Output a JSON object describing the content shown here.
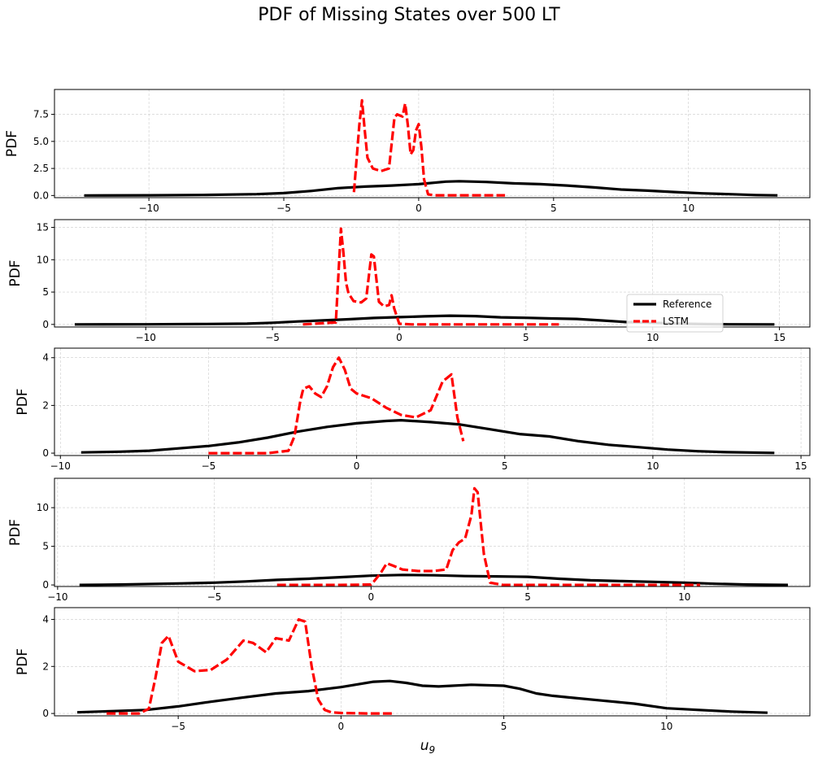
{
  "title": "PDF of Missing States over 500 LT",
  "colors": {
    "reference": "#000000",
    "lstm": "#ff0000",
    "grid": "#cccccc"
  },
  "chart_data": [
    {
      "type": "line",
      "ylabel": "PDF",
      "xlabel": "",
      "xlim": [
        -13.5,
        14.5
      ],
      "ylim": [
        -0.2,
        9.8
      ],
      "xticks": [
        -10,
        -5,
        0,
        5,
        10
      ],
      "xtick_labels": [
        "−10",
        "−5",
        "0",
        "5",
        "10"
      ],
      "yticks": [
        0,
        2.5,
        5,
        7.5
      ],
      "ytick_labels": [
        "0.0",
        "2.5",
        "5.0",
        "7.5"
      ],
      "grid": true,
      "series": [
        {
          "name": "Reference",
          "style": "solid",
          "x": [
            -12.4,
            -10,
            -8,
            -6,
            -5,
            -4,
            -3,
            -2,
            -1,
            0,
            1,
            1.5,
            2.5,
            3.5,
            4.5,
            5.5,
            6.5,
            7.5,
            8.5,
            9.5,
            10.5,
            11.5,
            12.5,
            13.3
          ],
          "y": [
            0.0,
            0.02,
            0.05,
            0.12,
            0.22,
            0.42,
            0.68,
            0.82,
            0.92,
            1.05,
            1.28,
            1.32,
            1.25,
            1.12,
            1.05,
            0.92,
            0.75,
            0.55,
            0.45,
            0.32,
            0.2,
            0.12,
            0.04,
            0.01
          ]
        },
        {
          "name": "LSTM",
          "style": "dashed",
          "x": [
            -2.4,
            -2.2,
            -2.1,
            -2.0,
            -1.9,
            -1.7,
            -1.4,
            -1.1,
            -0.9,
            -0.8,
            -0.6,
            -0.5,
            -0.4,
            -0.3,
            -0.2,
            -0.1,
            0.0,
            0.1,
            0.2,
            0.35,
            0.6,
            1.0,
            2.0,
            3.2
          ],
          "y": [
            0.3,
            6.5,
            8.8,
            6.0,
            3.5,
            2.5,
            2.25,
            2.5,
            7.2,
            7.5,
            7.3,
            8.5,
            6.5,
            3.8,
            4.2,
            6.0,
            6.6,
            4.5,
            1.5,
            0.1,
            0.02,
            0.02,
            0.02,
            0.02
          ]
        }
      ]
    },
    {
      "type": "line",
      "ylabel": "PDF",
      "xlabel": "",
      "xlim": [
        -13.6,
        16.2
      ],
      "ylim": [
        -0.4,
        16.2
      ],
      "xticks": [
        -10,
        -5,
        0,
        5,
        10,
        15
      ],
      "xtick_labels": [
        "−10",
        "−5",
        "0",
        "5",
        "10",
        "15"
      ],
      "yticks": [
        0,
        5,
        10,
        15
      ],
      "ytick_labels": [
        "0",
        "5",
        "10",
        "15"
      ],
      "grid": true,
      "legend": {
        "position": "lower-right",
        "entries": [
          "Reference",
          "LSTM"
        ]
      },
      "series": [
        {
          "name": "Reference",
          "style": "solid",
          "x": [
            -12.8,
            -10,
            -8,
            -6,
            -5,
            -4,
            -3,
            -2,
            -1,
            0,
            1,
            2,
            3,
            4,
            5,
            6,
            7,
            8,
            9,
            10,
            11,
            12,
            13,
            14.8
          ],
          "y": [
            0.0,
            0.02,
            0.05,
            0.12,
            0.25,
            0.45,
            0.62,
            0.8,
            1.0,
            1.12,
            1.25,
            1.35,
            1.28,
            1.1,
            1.02,
            0.92,
            0.85,
            0.6,
            0.35,
            0.25,
            0.12,
            0.05,
            0.02,
            0.0
          ]
        },
        {
          "name": "LSTM",
          "style": "dashed",
          "x": [
            -3.8,
            -2.5,
            -2.3,
            -2.2,
            -2.1,
            -2.0,
            -1.8,
            -1.5,
            -1.3,
            -1.1,
            -1.0,
            -0.9,
            -0.8,
            -0.6,
            -0.4,
            -0.3,
            -0.2,
            0.0,
            0.5,
            2.0,
            4.0,
            6.3
          ],
          "y": [
            0.0,
            0.3,
            14.8,
            11.0,
            6.5,
            4.8,
            3.6,
            3.4,
            4.0,
            10.8,
            10.5,
            7.0,
            3.5,
            2.8,
            3.0,
            4.5,
            2.5,
            0.1,
            0.0,
            0.0,
            0.0,
            0.0
          ]
        }
      ]
    },
    {
      "type": "line",
      "ylabel": "PDF",
      "xlabel": "",
      "xlim": [
        -10.2,
        15.3
      ],
      "ylim": [
        -0.1,
        4.4
      ],
      "xticks": [
        -10,
        -5,
        0,
        5,
        10,
        15
      ],
      "xtick_labels": [
        "−10",
        "−5",
        "0",
        "5",
        "10",
        "15"
      ],
      "yticks": [
        0,
        2,
        4
      ],
      "ytick_labels": [
        "0",
        "2",
        "4"
      ],
      "grid": true,
      "series": [
        {
          "name": "Reference",
          "style": "solid",
          "x": [
            -9.3,
            -8,
            -7,
            -6,
            -5,
            -4,
            -3,
            -2,
            -1,
            0,
            1,
            1.5,
            2.5,
            3.5,
            4.5,
            5.5,
            6.5,
            7.5,
            8.5,
            9.5,
            10.5,
            11.5,
            12.5,
            14.1
          ],
          "y": [
            0.03,
            0.06,
            0.1,
            0.2,
            0.3,
            0.45,
            0.65,
            0.9,
            1.1,
            1.25,
            1.35,
            1.38,
            1.3,
            1.2,
            1.0,
            0.8,
            0.7,
            0.5,
            0.35,
            0.25,
            0.15,
            0.08,
            0.04,
            0.01
          ]
        },
        {
          "name": "LSTM",
          "style": "dashed",
          "x": [
            -5.0,
            -3.0,
            -2.3,
            -2.1,
            -1.9,
            -1.8,
            -1.6,
            -1.4,
            -1.2,
            -1.0,
            -0.8,
            -0.6,
            -0.4,
            -0.2,
            0.0,
            0.5,
            1.0,
            1.5,
            2.0,
            2.5,
            2.9,
            3.2,
            3.4,
            3.6
          ],
          "y": [
            0.0,
            0.0,
            0.1,
            0.7,
            2.2,
            2.7,
            2.8,
            2.5,
            2.35,
            2.8,
            3.6,
            4.0,
            3.5,
            2.7,
            2.5,
            2.3,
            1.9,
            1.6,
            1.5,
            1.8,
            3.0,
            3.3,
            1.5,
            0.5
          ]
        }
      ]
    },
    {
      "type": "line",
      "ylabel": "PDF",
      "xlabel": "",
      "xlim": [
        -10.1,
        14.0
      ],
      "ylim": [
        -0.2,
        13.8
      ],
      "xticks": [
        -10,
        -5,
        0,
        5,
        10
      ],
      "xtick_labels": [
        "−10",
        "−5",
        "0",
        "5",
        "10"
      ],
      "yticks": [
        0,
        5,
        10
      ],
      "ytick_labels": [
        "0",
        "5",
        "10"
      ],
      "grid": true,
      "series": [
        {
          "name": "Reference",
          "style": "solid",
          "x": [
            -9.3,
            -8,
            -6,
            -5,
            -4,
            -3,
            -2,
            -1,
            0,
            1,
            2,
            3,
            4,
            5,
            6,
            7,
            8,
            9,
            10,
            11,
            12,
            13.3
          ],
          "y": [
            0.0,
            0.05,
            0.2,
            0.3,
            0.45,
            0.65,
            0.8,
            1.0,
            1.2,
            1.3,
            1.25,
            1.15,
            1.1,
            1.05,
            0.8,
            0.6,
            0.5,
            0.4,
            0.3,
            0.15,
            0.05,
            0.0
          ]
        },
        {
          "name": "LSTM",
          "style": "dashed",
          "x": [
            -3.0,
            -1.0,
            0.0,
            0.1,
            0.3,
            0.5,
            0.7,
            1.0,
            1.5,
            2.0,
            2.4,
            2.6,
            2.8,
            3.0,
            3.2,
            3.3,
            3.4,
            3.6,
            3.8,
            4.2,
            6.0,
            8.0,
            10.5
          ],
          "y": [
            0.0,
            0.0,
            0.05,
            0.5,
            1.5,
            2.8,
            2.5,
            2.0,
            1.8,
            1.8,
            2.0,
            4.5,
            5.5,
            6.0,
            9.0,
            12.5,
            12.0,
            4.0,
            0.3,
            0.0,
            0.0,
            0.0,
            0.0
          ]
        }
      ]
    },
    {
      "type": "line",
      "ylabel": "PDF",
      "xlabel": "u9",
      "xlabel_base": "u",
      "xlabel_sub": "9",
      "xlim": [
        -8.8,
        14.4
      ],
      "ylim": [
        -0.1,
        4.5
      ],
      "xticks": [
        -5,
        0,
        5,
        10
      ],
      "xtick_labels": [
        "−5",
        "0",
        "5",
        "10"
      ],
      "yticks": [
        0,
        2,
        4
      ],
      "ytick_labels": [
        "0",
        "2",
        "4"
      ],
      "grid": true,
      "series": [
        {
          "name": "Reference",
          "style": "solid",
          "x": [
            -8.1,
            -7,
            -6,
            -5,
            -4,
            -3,
            -2,
            -1,
            0,
            1,
            1.5,
            2,
            2.5,
            3,
            4,
            5,
            5.5,
            6,
            6.5,
            7,
            8,
            9,
            10,
            11,
            12,
            13.1
          ],
          "y": [
            0.05,
            0.1,
            0.15,
            0.3,
            0.5,
            0.68,
            0.85,
            0.95,
            1.12,
            1.35,
            1.38,
            1.3,
            1.18,
            1.15,
            1.22,
            1.18,
            1.05,
            0.85,
            0.75,
            0.68,
            0.55,
            0.42,
            0.22,
            0.15,
            0.08,
            0.03
          ]
        },
        {
          "name": "LSTM",
          "style": "dashed",
          "x": [
            -7.2,
            -6.2,
            -5.9,
            -5.7,
            -5.5,
            -5.3,
            -5.0,
            -4.5,
            -4.0,
            -3.5,
            -3.0,
            -2.7,
            -2.3,
            -2.0,
            -1.6,
            -1.3,
            -1.1,
            -0.9,
            -0.7,
            -0.5,
            -0.3,
            0.0,
            0.8,
            1.6
          ],
          "y": [
            0.0,
            0.0,
            0.2,
            1.5,
            3.0,
            3.3,
            2.2,
            1.8,
            1.85,
            2.3,
            3.1,
            3.0,
            2.6,
            3.2,
            3.1,
            4.0,
            3.9,
            2.0,
            0.6,
            0.15,
            0.05,
            0.02,
            0.0,
            0.0
          ]
        }
      ]
    }
  ]
}
